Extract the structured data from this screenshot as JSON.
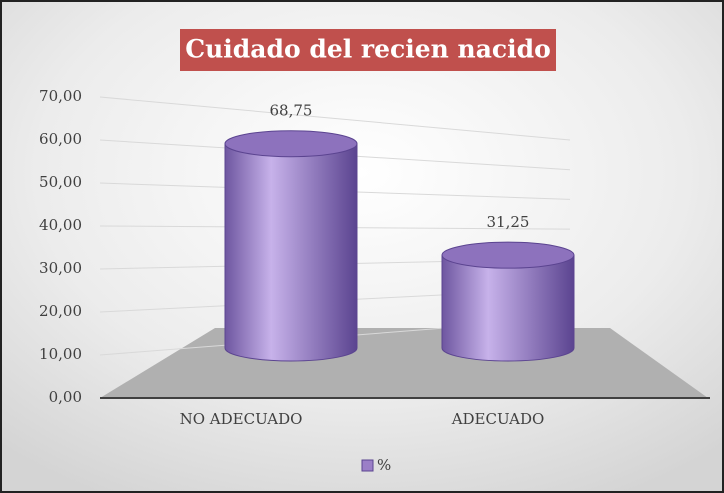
{
  "chart_data": {
    "type": "bar",
    "title": "Cuidado del recien nacido",
    "categories": [
      "NO ADECUADO",
      "ADECUADO"
    ],
    "series": [
      {
        "name": "%",
        "color": "#9b7fc7",
        "values": [
          68.75,
          31.25
        ],
        "value_labels": [
          "68,75",
          "31,25"
        ]
      }
    ],
    "ylim": [
      0,
      70
    ],
    "yticks": [
      {
        "value": 0,
        "label": "0,00"
      },
      {
        "value": 10,
        "label": "10,00"
      },
      {
        "value": 20,
        "label": "20,00"
      },
      {
        "value": 30,
        "label": "30,00"
      },
      {
        "value": 40,
        "label": "40,00"
      },
      {
        "value": 50,
        "label": "50,00"
      },
      {
        "value": 60,
        "label": "60,00"
      },
      {
        "value": 70,
        "label": "70,00"
      }
    ],
    "grid": true,
    "legend": "bottom"
  }
}
